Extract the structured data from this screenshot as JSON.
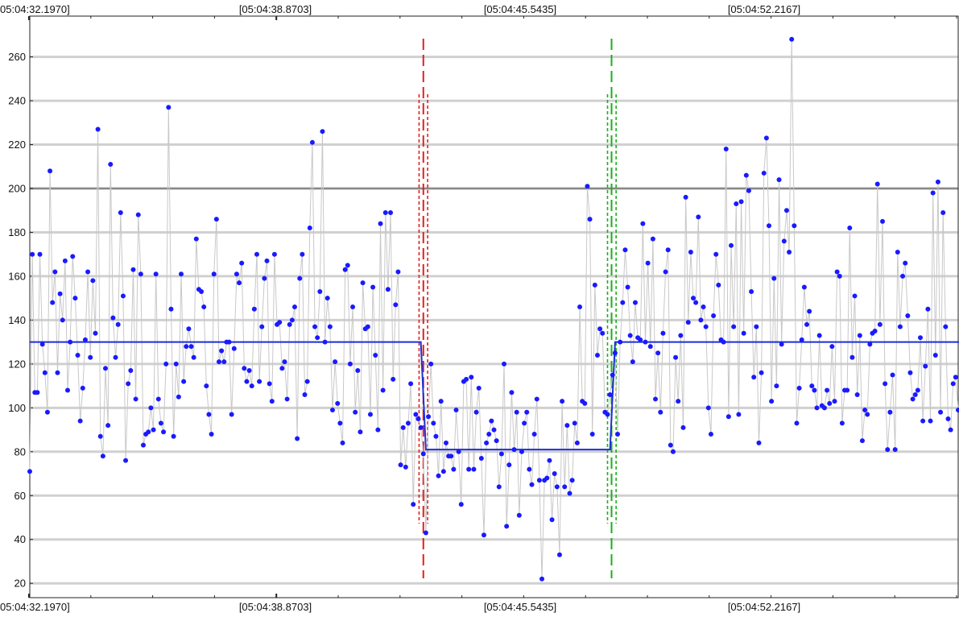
{
  "chart_data": {
    "type": "line",
    "title": "",
    "xlabel": "",
    "ylabel": "",
    "x_tick_labels": [
      "05:04:32.1970]",
      "[05:04:38.8703]",
      "[05:04:45.5435]",
      "[05:04:52.2167]"
    ],
    "y_ticks": [
      20,
      40,
      60,
      80,
      100,
      120,
      140,
      160,
      180,
      200,
      220,
      240,
      260
    ],
    "ylim": [
      15,
      275
    ],
    "grid": true,
    "threshold_line": 200,
    "series": [
      {
        "kind": "samples",
        "values": [
          71,
          170,
          107,
          107,
          170,
          129,
          116,
          98,
          208,
          148,
          162,
          116,
          152,
          140,
          167,
          108,
          130,
          169,
          150,
          124,
          94,
          109,
          131,
          162,
          123,
          158,
          134,
          227,
          87,
          78,
          118,
          92,
          211,
          141,
          123,
          138,
          189,
          151,
          76,
          111,
          117,
          163,
          104,
          188,
          161,
          83,
          88,
          89,
          100,
          90,
          161,
          104,
          93,
          89,
          120,
          237,
          145,
          87,
          120,
          105,
          161,
          112,
          128,
          136,
          128,
          123,
          177,
          154,
          153,
          146,
          110,
          97,
          88,
          161,
          186,
          121,
          126,
          121,
          130,
          130,
          97,
          127,
          161,
          157,
          166,
          118,
          112,
          117,
          110,
          145,
          170,
          112,
          137,
          159,
          167,
          111,
          103,
          170,
          138,
          139,
          118,
          121,
          104,
          138,
          140,
          146,
          86,
          159,
          170,
          106,
          112,
          182,
          221,
          137,
          132,
          153,
          226,
          130,
          150,
          137,
          99,
          121,
          102,
          93,
          84,
          163,
          165,
          120,
          146,
          98,
          117,
          89,
          157,
          136,
          137,
          97,
          155,
          124,
          90,
          184,
          108,
          189,
          154,
          189,
          113,
          147,
          162,
          74,
          91,
          73,
          93,
          111,
          56,
          97,
          95,
          91,
          79,
          43,
          96,
          120,
          93,
          87,
          69,
          103,
          71,
          84,
          78,
          78,
          72,
          99,
          80,
          56,
          112,
          113,
          72,
          114,
          72,
          98,
          109,
          77,
          42,
          84,
          88,
          94,
          90,
          85,
          64,
          79,
          120,
          46,
          74,
          107,
          81,
          98,
          51,
          80,
          93,
          98,
          72,
          65,
          88,
          104,
          67,
          22,
          67,
          68,
          76,
          49,
          70,
          64,
          33,
          103,
          64,
          92,
          61,
          67,
          93,
          84,
          146,
          103,
          102,
          201,
          186,
          88,
          156,
          124,
          136,
          134,
          98,
          97,
          106,
          115,
          125,
          88,
          130,
          148,
          172,
          155,
          133,
          121,
          148,
          132,
          131,
          184,
          130,
          166,
          128,
          177,
          104,
          125,
          98,
          134,
          162,
          172,
          83,
          80,
          123,
          103,
          133,
          91,
          196,
          139,
          171,
          150,
          148,
          187,
          140,
          146,
          137,
          100,
          88,
          142,
          170,
          156,
          131,
          130,
          218,
          96,
          174,
          137,
          193,
          97,
          194,
          134,
          206,
          199,
          153,
          114,
          137,
          84,
          116,
          207,
          223,
          183,
          103,
          159,
          110,
          204,
          129,
          176,
          190,
          171,
          268,
          183,
          93,
          109,
          131,
          155,
          138,
          144,
          110,
          108,
          100,
          133,
          101,
          100,
          108,
          102,
          128,
          103,
          162,
          160,
          93,
          108,
          108,
          182,
          123,
          151,
          106,
          133,
          85,
          99,
          97,
          129,
          134,
          135,
          202,
          138,
          185,
          111,
          81,
          98,
          115,
          81,
          171,
          137,
          160,
          166,
          142,
          116,
          104,
          106,
          108,
          132,
          94,
          119,
          145,
          94,
          198,
          124,
          203,
          98,
          189,
          137,
          95,
          90,
          111,
          114,
          99
        ]
      },
      {
        "kind": "segment-mean",
        "points": [
          [
            0,
            130
          ],
          [
            155,
            130
          ],
          [
            157,
            81
          ],
          [
            230,
            81
          ],
          [
            232,
            130
          ],
          [
            371,
            130
          ]
        ]
      }
    ],
    "change_points": [
      {
        "color": "#e02020",
        "center": 156,
        "band": [
          154.3,
          157.7
        ]
      },
      {
        "color": "#19b019",
        "center": 230.6,
        "band": [
          229.0,
          232.4
        ]
      }
    ],
    "colors": {
      "samples": "#1a1aff",
      "sample_line": "#c8c8c8",
      "mean": "#1e2fd6",
      "grid": "#d0d0d0",
      "threshold": "#888888"
    }
  }
}
